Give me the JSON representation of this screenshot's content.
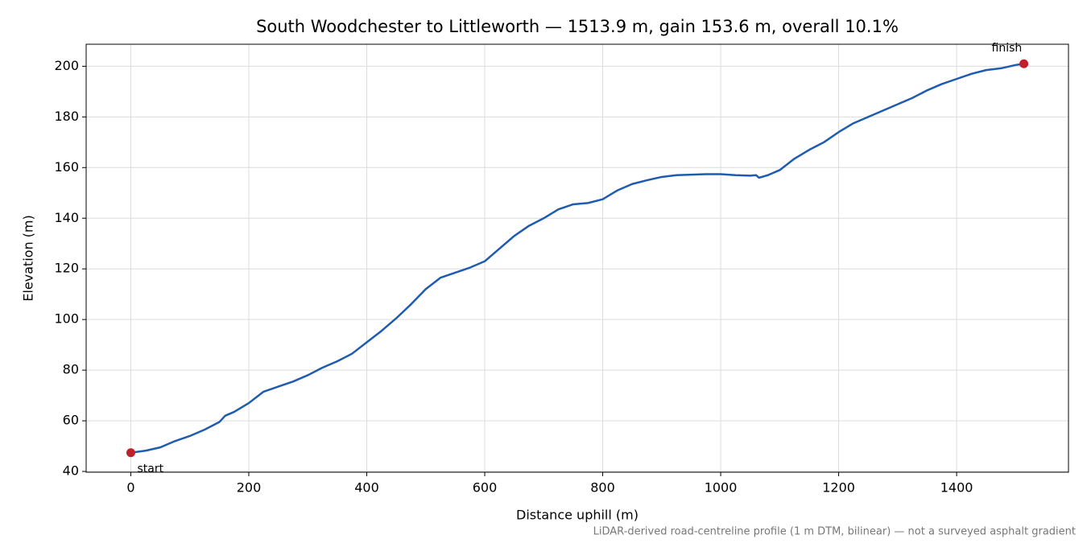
{
  "chart_data": {
    "type": "line",
    "title": "South Woodchester to Littleworth — 1513.9 m, gain 153.6 m, overall 10.1%",
    "x_label": "Distance uphill (m)",
    "y_label": "Elevation (m)",
    "footnote": "LiDAR-derived road-centreline profile (1 m DTM, bilinear) — not a surveyed asphalt gradient",
    "x": [
      0,
      25,
      50,
      75,
      100,
      125,
      150,
      160,
      175,
      200,
      225,
      250,
      275,
      300,
      325,
      350,
      375,
      400,
      425,
      450,
      475,
      500,
      525,
      550,
      575,
      600,
      625,
      650,
      675,
      700,
      725,
      750,
      775,
      800,
      825,
      850,
      875,
      900,
      925,
      950,
      975,
      1000,
      1025,
      1050,
      1060,
      1065,
      1080,
      1100,
      1125,
      1150,
      1175,
      1200,
      1225,
      1250,
      1275,
      1300,
      1325,
      1350,
      1375,
      1400,
      1425,
      1450,
      1475,
      1500,
      1513.9
    ],
    "series": [
      {
        "name": "Elevation",
        "color": "#1f5bb0",
        "values": [
          47.4,
          48.2,
          49.5,
          52,
          54,
          56.5,
          59.5,
          62,
          63.5,
          67,
          71.5,
          73.5,
          75.5,
          78,
          81,
          83.5,
          86.5,
          91,
          95.5,
          100.5,
          106,
          112,
          116.5,
          118.5,
          120.5,
          123,
          128,
          133,
          137,
          140,
          143.5,
          145.5,
          146,
          147.5,
          151,
          153.5,
          155,
          156.3,
          157,
          157.2,
          157.4,
          157.4,
          157,
          156.8,
          157,
          156,
          157,
          159,
          163.5,
          167,
          170,
          174,
          177.5,
          180,
          182.5,
          185,
          187.5,
          190.5,
          193,
          195,
          197,
          198.5,
          199.2,
          200.5,
          201
        ]
      }
    ],
    "markers": {
      "color": "#c0202a",
      "x": [
        0,
        1513.9
      ],
      "y": [
        47.4,
        201
      ],
      "labels": [
        "start",
        "finish"
      ]
    },
    "xlim": [
      -75.7,
      1589.6
    ],
    "ylim": [
      39.7,
      208.7
    ],
    "xticks": [
      0,
      200,
      400,
      600,
      800,
      1000,
      1200,
      1400
    ],
    "yticks": [
      40,
      60,
      80,
      100,
      120,
      140,
      160,
      180,
      200
    ],
    "grid": true
  }
}
